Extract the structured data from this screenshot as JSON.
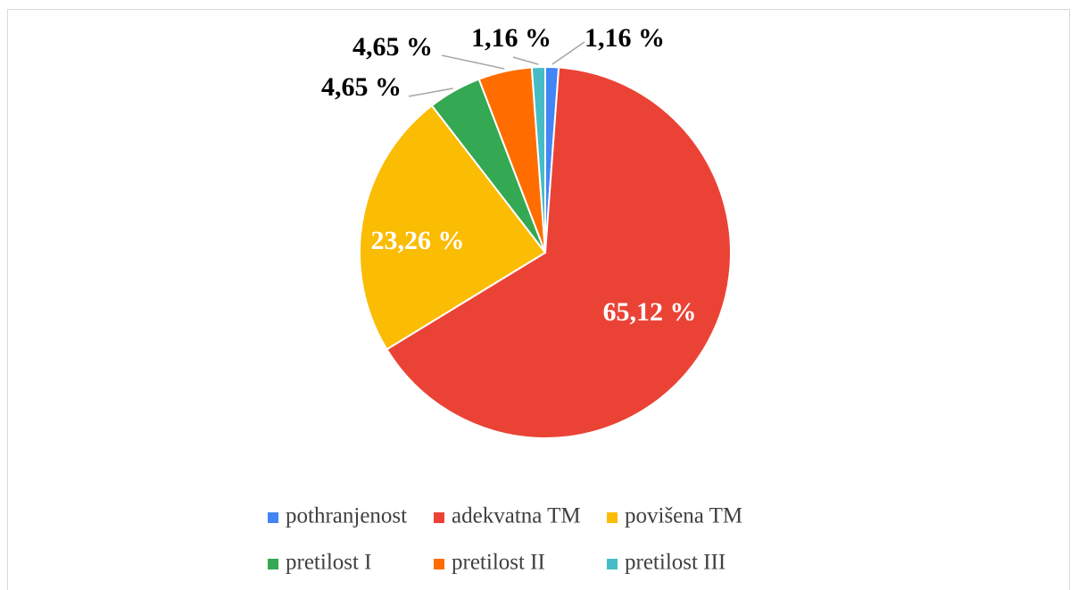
{
  "chart_data": {
    "type": "pie",
    "categories": [
      "pothranjenost",
      "adekvatna TM",
      "povišena TM",
      "pretilost I",
      "pretilost II",
      "pretilost III"
    ],
    "values": [
      1.16,
      65.12,
      23.26,
      4.65,
      4.65,
      1.16
    ],
    "value_labels": [
      "1,16 %",
      "65,12 %",
      "23,26 %",
      "4,65 %",
      "4,65 %",
      "1,16 %"
    ],
    "colors": [
      "#4285f4",
      "#ea4335",
      "#fbbc04",
      "#34a853",
      "#ff6d01",
      "#46bdc6"
    ],
    "legend": "bottom"
  }
}
